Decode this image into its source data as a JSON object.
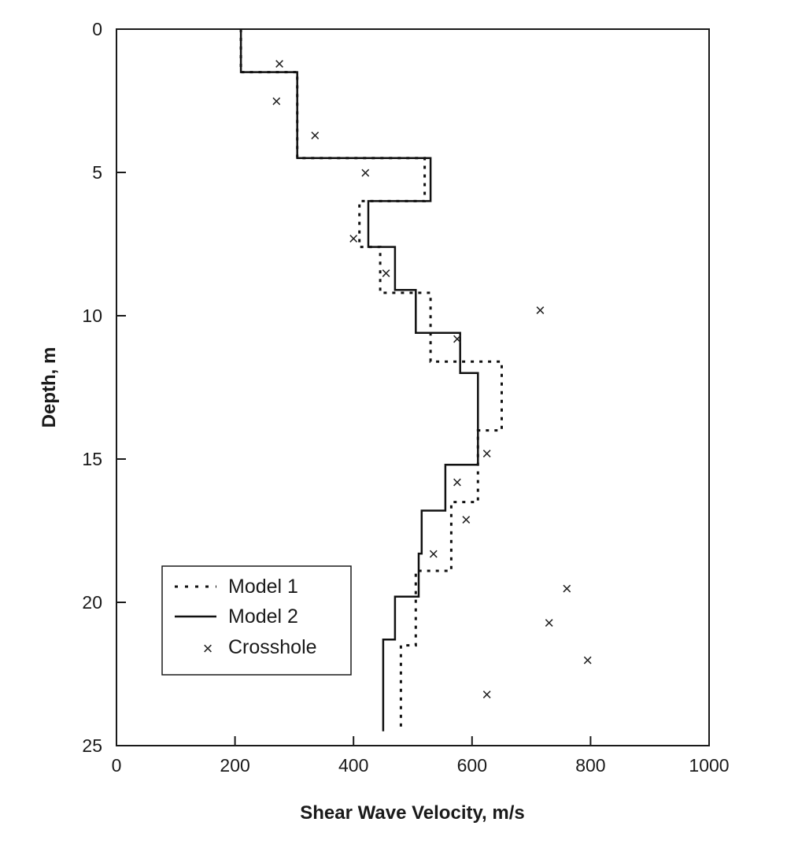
{
  "chart_data": {
    "type": "line",
    "title": "",
    "xlabel": "Shear Wave Velocity, m/s",
    "ylabel": "Depth, m",
    "xlim": [
      0,
      1000
    ],
    "ylim": [
      0,
      25
    ],
    "y_inverted": true,
    "grid": false,
    "legend_position": "bottom-left",
    "x_ticks": [
      "0",
      "200",
      "400",
      "600",
      "800",
      "1000"
    ],
    "y_ticks": [
      "0",
      "5",
      "10",
      "15",
      "20",
      "25"
    ],
    "series": [
      {
        "name": "Model 1",
        "style": "dotted",
        "color": "#111111",
        "layers": [
          {
            "velocity": 210,
            "top": 0,
            "bottom": 1.5
          },
          {
            "velocity": 305,
            "top": 1.5,
            "bottom": 4.5
          },
          {
            "velocity": 520,
            "top": 4.5,
            "bottom": 6.0
          },
          {
            "velocity": 410,
            "top": 6.0,
            "bottom": 7.6
          },
          {
            "velocity": 445,
            "top": 7.6,
            "bottom": 9.2
          },
          {
            "velocity": 530,
            "top": 9.2,
            "bottom": 11.6
          },
          {
            "velocity": 650,
            "top": 11.6,
            "bottom": 14.0
          },
          {
            "velocity": 610,
            "top": 14.0,
            "bottom": 16.5
          },
          {
            "velocity": 565,
            "top": 16.5,
            "bottom": 18.9
          },
          {
            "velocity": 505,
            "top": 18.9,
            "bottom": 21.5
          },
          {
            "velocity": 480,
            "top": 21.5,
            "bottom": 24.5
          }
        ]
      },
      {
        "name": "Model 2",
        "style": "solid",
        "color": "#111111",
        "layers": [
          {
            "velocity": 210,
            "top": 0,
            "bottom": 1.5
          },
          {
            "velocity": 305,
            "top": 1.5,
            "bottom": 4.5
          },
          {
            "velocity": 530,
            "top": 4.5,
            "bottom": 6.0
          },
          {
            "velocity": 425,
            "top": 6.0,
            "bottom": 7.6
          },
          {
            "velocity": 470,
            "top": 7.6,
            "bottom": 9.1
          },
          {
            "velocity": 505,
            "top": 9.1,
            "bottom": 10.6
          },
          {
            "velocity": 580,
            "top": 10.6,
            "bottom": 12.0
          },
          {
            "velocity": 610,
            "top": 12.0,
            "bottom": 15.2
          },
          {
            "velocity": 555,
            "top": 15.2,
            "bottom": 16.8
          },
          {
            "velocity": 515,
            "top": 16.8,
            "bottom": 18.3
          },
          {
            "velocity": 510,
            "top": 18.3,
            "bottom": 19.8
          },
          {
            "velocity": 470,
            "top": 19.8,
            "bottom": 21.3
          },
          {
            "velocity": 450,
            "top": 21.3,
            "bottom": 24.5
          }
        ]
      },
      {
        "name": "Crosshole",
        "style": "marker-x",
        "color": "#222222",
        "points": [
          {
            "velocity": 275,
            "depth": 1.2
          },
          {
            "velocity": 270,
            "depth": 2.5
          },
          {
            "velocity": 335,
            "depth": 3.7
          },
          {
            "velocity": 420,
            "depth": 5.0
          },
          {
            "velocity": 400,
            "depth": 7.3
          },
          {
            "velocity": 455,
            "depth": 8.5
          },
          {
            "velocity": 715,
            "depth": 9.8
          },
          {
            "velocity": 575,
            "depth": 10.8
          },
          {
            "velocity": 625,
            "depth": 14.8
          },
          {
            "velocity": 575,
            "depth": 15.8
          },
          {
            "velocity": 590,
            "depth": 17.1
          },
          {
            "velocity": 535,
            "depth": 18.3
          },
          {
            "velocity": 760,
            "depth": 19.5
          },
          {
            "velocity": 730,
            "depth": 20.7
          },
          {
            "velocity": 795,
            "depth": 22.0
          },
          {
            "velocity": 625,
            "depth": 23.2
          }
        ]
      }
    ]
  }
}
